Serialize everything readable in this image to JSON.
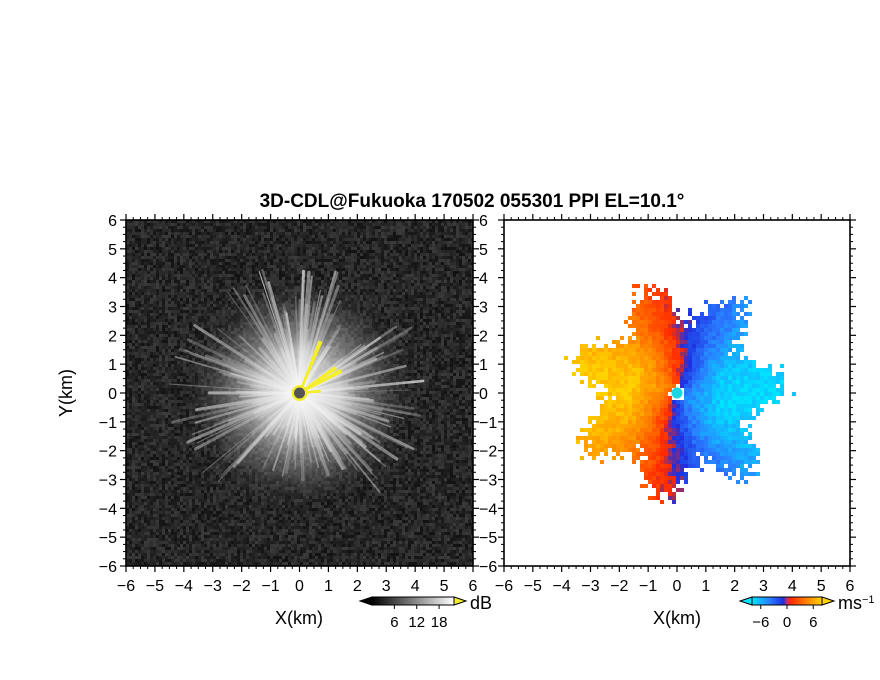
{
  "title": "3D-CDL@Fukuoka 170502 055301 PPI EL=10.1°",
  "chart_data": [
    {
      "type": "heatmap",
      "panel": "left",
      "quantity": "SNR",
      "xlabel": "X(km)",
      "ylabel": "Y(km)",
      "xlim": [
        -6,
        6
      ],
      "ylim": [
        -6,
        6
      ],
      "xticks": [
        "−6",
        "−5",
        "−4",
        "−3",
        "−2",
        "−1",
        "0",
        "1",
        "2",
        "3",
        "4",
        "5",
        "6"
      ],
      "yticks": [
        "−6",
        "−5",
        "−4",
        "−3",
        "−2",
        "−1",
        "0",
        "1",
        "2",
        "3",
        "4",
        "5",
        "6"
      ],
      "colorbar": {
        "unit": "dB",
        "ticks": [
          "6",
          "12",
          "18"
        ],
        "tick_values": [
          6,
          12,
          18
        ],
        "range": [
          0,
          22
        ]
      },
      "palette": {
        "background": "#1e1e1e",
        "high": "#ffffff",
        "overlay": "#f5ee2a",
        "center": "#555555"
      },
      "description_features": {
        "radar_center": [
          0,
          0
        ],
        "max_echo_radius_km": 4.5,
        "yellow_streaks_deg": [
          68,
          28,
          35,
          5
        ]
      }
    },
    {
      "type": "heatmap",
      "panel": "right",
      "quantity": "radial velocity",
      "xlabel": "X(km)",
      "ylabel": "",
      "xlim": [
        -6,
        6
      ],
      "ylim": [
        -6,
        6
      ],
      "xticks": [
        "−6",
        "−5",
        "−4",
        "−3",
        "−2",
        "−1",
        "0",
        "1",
        "2",
        "3",
        "4",
        "5",
        "6"
      ],
      "yticks": [
        "−6",
        "−5",
        "−4",
        "−3",
        "−2",
        "−1",
        "0",
        "1",
        "2",
        "3",
        "4",
        "5",
        "6"
      ],
      "colorbar": {
        "unit": "ms",
        "unit_exp": "−1",
        "ticks": [
          "−6",
          "0",
          "6"
        ],
        "tick_values": [
          -6,
          0,
          6
        ],
        "range": [
          -8,
          8
        ]
      },
      "palette": {
        "negative_far": "#00e5ff",
        "negative": "#1f4ee0",
        "zero": "#ffffff",
        "positive": "#ff3b00",
        "positive_far": "#ffd400"
      },
      "description_features": {
        "radar_center": [
          0,
          0
        ],
        "echo_radius_km": 3.6,
        "approaching_side": "east",
        "receding_side": "west"
      }
    }
  ]
}
